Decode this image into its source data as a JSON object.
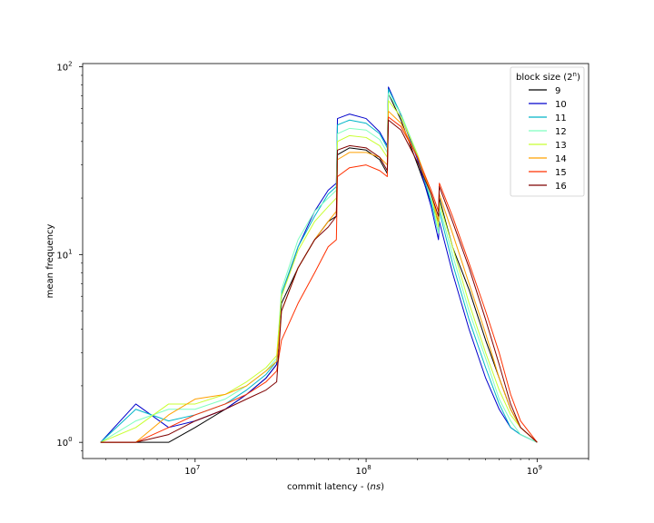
{
  "chart_data": {
    "type": "line",
    "xlabel": "commit latency - (ns)",
    "ylabel": "mean frequency",
    "xscale": "log",
    "yscale": "log",
    "xlim": [
      2200000,
      2000000000
    ],
    "ylim": [
      0.82,
      104
    ],
    "x_ticks": [
      {
        "value": 10000000,
        "base": "10",
        "exp": "7"
      },
      {
        "value": 100000000,
        "base": "10",
        "exp": "8"
      },
      {
        "value": 1000000000,
        "base": "10",
        "exp": "9"
      }
    ],
    "y_ticks": [
      {
        "value": 1,
        "base": "10",
        "exp": "0"
      },
      {
        "value": 10,
        "base": "10",
        "exp": "1"
      },
      {
        "value": 100,
        "base": "10",
        "exp": "2"
      }
    ],
    "grid": false,
    "legend": {
      "title": "block size (2^n)",
      "position": "top-right"
    },
    "series": [
      {
        "name": "9",
        "color": "#000000",
        "x": [
          2800000,
          4500000,
          7000000,
          10000000,
          15000000,
          20000000,
          26000000,
          30000000,
          32000000,
          40000000,
          50000000,
          60000000,
          67000000,
          68000000,
          80000000,
          100000000,
          120000000,
          133000000,
          135000000,
          160000000,
          200000000,
          240000000,
          265000000,
          268000000,
          320000000,
          400000000,
          500000000,
          600000000,
          700000000,
          800000000,
          1000000000
        ],
        "y": [
          1,
          1,
          1,
          1.2,
          1.5,
          1.8,
          2.2,
          2.6,
          5.5,
          8.5,
          12,
          15,
          16,
          34,
          37,
          36,
          32,
          27,
          72,
          52,
          30,
          19,
          15,
          20,
          11,
          6.5,
          3.5,
          2.2,
          1.5,
          1.2,
          1
        ]
      },
      {
        "name": "10",
        "color": "#0000cc",
        "x": [
          2800000,
          4500000,
          7000000,
          10000000,
          15000000,
          20000000,
          26000000,
          30000000,
          32000000,
          40000000,
          50000000,
          60000000,
          67000000,
          68000000,
          80000000,
          100000000,
          120000000,
          133000000,
          135000000,
          160000000,
          200000000,
          240000000,
          265000000,
          268000000,
          320000000,
          400000000,
          500000000,
          600000000,
          700000000,
          800000000,
          1000000000
        ],
        "y": [
          1,
          1.6,
          1.2,
          1.3,
          1.5,
          1.8,
          2.2,
          2.6,
          6,
          11,
          17,
          22,
          24,
          53,
          56,
          53,
          45,
          38,
          78,
          55,
          32,
          18,
          12,
          15,
          8,
          4,
          2.2,
          1.5,
          1.2,
          1.1,
          1
        ]
      },
      {
        "name": "11",
        "color": "#00b5c8",
        "x": [
          2800000,
          4500000,
          7000000,
          10000000,
          15000000,
          20000000,
          26000000,
          30000000,
          32000000,
          40000000,
          50000000,
          60000000,
          67000000,
          68000000,
          80000000,
          100000000,
          120000000,
          133000000,
          135000000,
          160000000,
          200000000,
          240000000,
          265000000,
          268000000,
          320000000,
          400000000,
          500000000,
          600000000,
          700000000,
          800000000,
          1000000000
        ],
        "y": [
          1,
          1.5,
          1.3,
          1.4,
          1.6,
          1.9,
          2.3,
          2.7,
          6.2,
          11,
          16,
          21,
          23,
          49,
          52,
          50,
          44,
          37,
          76,
          56,
          33,
          19,
          13,
          17,
          9,
          4.5,
          2.5,
          1.6,
          1.2,
          1.1,
          1
        ]
      },
      {
        "name": "12",
        "color": "#7fffbf",
        "x": [
          2800000,
          4500000,
          7000000,
          10000000,
          15000000,
          20000000,
          26000000,
          30000000,
          32000000,
          40000000,
          50000000,
          60000000,
          67000000,
          68000000,
          80000000,
          100000000,
          120000000,
          133000000,
          135000000,
          160000000,
          200000000,
          240000000,
          265000000,
          268000000,
          320000000,
          400000000,
          500000000,
          600000000,
          700000000,
          800000000,
          1000000000
        ],
        "y": [
          1,
          1.3,
          1.5,
          1.5,
          1.7,
          2,
          2.4,
          2.8,
          6.5,
          12,
          17,
          20,
          22,
          44,
          47,
          46,
          41,
          35,
          72,
          56,
          34,
          20,
          13,
          18,
          10,
          5,
          2.8,
          1.7,
          1.3,
          1.1,
          1
        ]
      },
      {
        "name": "13",
        "color": "#c8ff30",
        "x": [
          2800000,
          4500000,
          7000000,
          10000000,
          15000000,
          20000000,
          26000000,
          30000000,
          32000000,
          40000000,
          50000000,
          60000000,
          67000000,
          68000000,
          80000000,
          100000000,
          120000000,
          133000000,
          135000000,
          160000000,
          200000000,
          240000000,
          265000000,
          268000000,
          320000000,
          400000000,
          500000000,
          600000000,
          700000000,
          800000000,
          1000000000
        ],
        "y": [
          1,
          1.2,
          1.6,
          1.6,
          1.8,
          2.1,
          2.5,
          2.9,
          6,
          10.5,
          15,
          18,
          20,
          40,
          43,
          42,
          38,
          33,
          66,
          54,
          34,
          21,
          14,
          19,
          11,
          5.5,
          3,
          1.9,
          1.4,
          1.2,
          1
        ]
      },
      {
        "name": "14",
        "color": "#ffa000",
        "x": [
          2800000,
          4500000,
          7000000,
          10000000,
          15000000,
          20000000,
          26000000,
          30000000,
          32000000,
          40000000,
          50000000,
          60000000,
          67000000,
          68000000,
          80000000,
          100000000,
          120000000,
          133000000,
          135000000,
          160000000,
          200000000,
          240000000,
          265000000,
          268000000,
          320000000,
          400000000,
          500000000,
          600000000,
          700000000,
          800000000,
          1000000000
        ],
        "y": [
          1,
          1,
          1.4,
          1.7,
          1.8,
          2,
          2.4,
          2.7,
          5,
          8.5,
          12,
          15,
          17,
          32,
          35,
          35,
          33,
          30,
          58,
          50,
          33,
          21,
          15,
          21,
          13,
          7,
          3.8,
          2.2,
          1.5,
          1.2,
          1
        ]
      },
      {
        "name": "15",
        "color": "#ff3000",
        "x": [
          2800000,
          4500000,
          7000000,
          10000000,
          15000000,
          20000000,
          26000000,
          30000000,
          32000000,
          40000000,
          50000000,
          60000000,
          67000000,
          68000000,
          80000000,
          100000000,
          120000000,
          133000000,
          135000000,
          160000000,
          200000000,
          240000000,
          265000000,
          268000000,
          320000000,
          400000000,
          500000000,
          600000000,
          700000000,
          800000000,
          1000000000
        ],
        "y": [
          1,
          1,
          1.2,
          1.4,
          1.6,
          1.8,
          2.1,
          2.4,
          3.5,
          5.5,
          8,
          11,
          12,
          26,
          29,
          30,
          28,
          26,
          54,
          48,
          33,
          22,
          17,
          24,
          16,
          9,
          5,
          3,
          1.8,
          1.3,
          1
        ]
      },
      {
        "name": "16",
        "color": "#7f0000",
        "x": [
          2800000,
          4500000,
          7000000,
          10000000,
          15000000,
          20000000,
          26000000,
          30000000,
          32000000,
          40000000,
          50000000,
          60000000,
          67000000,
          68000000,
          80000000,
          100000000,
          120000000,
          133000000,
          135000000,
          160000000,
          200000000,
          240000000,
          265000000,
          268000000,
          320000000,
          400000000,
          500000000,
          600000000,
          700000000,
          800000000,
          1000000000
        ],
        "y": [
          1,
          1,
          1.1,
          1.3,
          1.5,
          1.7,
          1.9,
          2.1,
          5,
          8.5,
          12,
          14,
          16,
          36,
          38,
          37,
          33,
          28,
          52,
          46,
          31,
          21,
          16,
          23,
          15,
          8.5,
          4.5,
          2.6,
          1.6,
          1.2,
          1
        ]
      }
    ]
  }
}
